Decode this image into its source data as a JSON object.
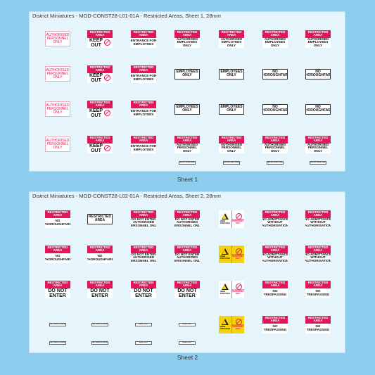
{
  "sheets": [
    {
      "title": "District Miniatures - MOD-CONST28-L01-01A - Restricted Areas, Sheet 1, 28mm",
      "caption": "Sheet 1",
      "rows": [
        [
          {
            "style": "red-text",
            "body": [
              "AUTHORISED",
              "PERSONNEL",
              "ONLY"
            ]
          },
          {
            "style": "keep-out",
            "header": [
              "RESTRICTED",
              "AREA"
            ],
            "body": [
              "KEEP",
              "OUT"
            ]
          },
          {
            "style": "restricted",
            "header": [
              "RESTRICTED",
              "AREA"
            ],
            "body": [
              "ENTRANCE FOR",
              "EMPLOYEES"
            ]
          },
          {
            "style": "restricted",
            "header": [
              "RESTRICTED",
              "AREA"
            ],
            "body": [
              "AUTHORISED",
              "EMPLOYEES",
              "ONLY"
            ]
          },
          {
            "style": "restricted",
            "header": [
              "RESTRICTED",
              "AREA"
            ],
            "body": [
              "AUTHORISED",
              "EMPLOYEES",
              "ONLY"
            ]
          },
          {
            "style": "restricted",
            "header": [
              "RESTRICTED",
              "AREA"
            ],
            "body": [
              "AUTHORISED",
              "EMPLOYEES",
              "ONLY"
            ]
          },
          {
            "style": "restricted",
            "header": [
              "RESTRICTED",
              "AREA"
            ],
            "body": [
              "AUTHORISED",
              "EMPLOYEES",
              "ONLY"
            ]
          }
        ],
        [
          {
            "style": "red-text",
            "body": [
              "AUTHORISED",
              "PERSONNEL",
              "ONLY"
            ]
          },
          {
            "style": "keep-out",
            "header": [
              "RESTRICTED",
              "AREA"
            ],
            "body": [
              "KEEP",
              "OUT"
            ]
          },
          {
            "style": "restricted",
            "header": [
              "RESTRICTED",
              "AREA"
            ],
            "body": [
              "ENTRANCE FOR",
              "EMPLOYEES"
            ]
          },
          {
            "style": "plain",
            "body": [
              "EMPLOYEES",
              "ONLY"
            ]
          },
          {
            "style": "plain",
            "body": [
              "EMPLOYEES",
              "ONLY"
            ]
          },
          {
            "style": "plain",
            "body": [
              "NO",
              "THOROUGHFARE"
            ]
          },
          {
            "style": "plain",
            "body": [
              "NO",
              "THOROUGHFARE"
            ]
          }
        ],
        [
          {
            "style": "red-text",
            "body": [
              "AUTHORISED",
              "PERSONNEL",
              "ONLY"
            ]
          },
          {
            "style": "keep-out",
            "header": [
              "RESTRICTED",
              "AREA"
            ],
            "body": [
              "KEEP",
              "OUT"
            ]
          },
          {
            "style": "restricted",
            "header": [
              "RESTRICTED",
              "AREA"
            ],
            "body": [
              "ENTRANCE FOR",
              "EMPLOYEES"
            ]
          },
          {
            "style": "plain",
            "body": [
              "EMPLOYEES",
              "ONLY"
            ]
          },
          {
            "style": "plain",
            "body": [
              "EMPLOYEES",
              "ONLY"
            ]
          },
          {
            "style": "plain",
            "body": [
              "NO",
              "THOROUGHFARE"
            ]
          },
          {
            "style": "plain",
            "body": [
              "NO",
              "THOROUGHFARE"
            ]
          }
        ],
        [
          {
            "style": "red-text",
            "body": [
              "AUTHORISED",
              "PERSONNEL",
              "ONLY"
            ]
          },
          {
            "style": "keep-out",
            "header": [
              "RESTRICTED",
              "AREA"
            ],
            "body": [
              "KEEP",
              "OUT"
            ]
          },
          {
            "style": "restricted",
            "header": [
              "RESTRICTED",
              "AREA"
            ],
            "body": [
              "ENTRANCE FOR",
              "EMPLOYEES"
            ]
          },
          {
            "style": "restricted",
            "header": [
              "RESTRICTED",
              "AREA"
            ],
            "body": [
              "AUTHORISED",
              "PERSONNEL",
              "ONLY"
            ]
          },
          {
            "style": "restricted",
            "header": [
              "RESTRICTED",
              "AREA"
            ],
            "body": [
              "AUTHORISED",
              "PERSONNEL",
              "ONLY"
            ]
          },
          {
            "style": "restricted",
            "header": [
              "RESTRICTED",
              "AREA"
            ],
            "body": [
              "AUTHORISED",
              "PERSONNEL",
              "ONLY"
            ]
          },
          {
            "style": "restricted",
            "header": [
              "RESTRICTED",
              "AREA"
            ],
            "body": [
              "AUTHORISED",
              "PERSONNEL",
              "ONLY"
            ]
          }
        ],
        [
          null,
          null,
          null,
          {
            "style": "small",
            "body": [
              "EMPLOYEES ONLY"
            ]
          },
          {
            "style": "small",
            "body": [
              "EMPLOYEES ONLY"
            ]
          },
          {
            "style": "small",
            "body": [
              "EMPLOYEES ONLY"
            ]
          },
          {
            "style": "small",
            "body": [
              "EMPLOYEES ONLY"
            ]
          }
        ]
      ]
    },
    {
      "title": "District Miniatures - MOD-CONST28-L02-01A - Restricted Areas, Sheet 2, 28mm",
      "caption": "Sheet 2",
      "rows": [
        [
          {
            "style": "restricted",
            "header": [
              "RESTRICTED",
              "AREA"
            ],
            "body": [
              "NO",
              "THOROUGHFARE"
            ]
          },
          {
            "style": "plain",
            "body": [
              "RESTRICTED",
              "AREA"
            ]
          },
          {
            "style": "restricted",
            "header": [
              "RESTRICTED",
              "AREA"
            ],
            "body": [
              "DO NOT ENTER",
              "AUTHORISED",
              "PERSONNEL ONLY"
            ]
          },
          {
            "style": "restricted",
            "header": [
              "RESTRICTED",
              "AREA"
            ],
            "body": [
              "DO NOT ENTER",
              "AUTHORISED",
              "PERSONNEL ONLY"
            ]
          },
          {
            "style": "hazard",
            "body": [
              "HIGH",
              "VOLTAGE"
            ],
            "note": [
              "AUTHORISED",
              "PERSONNEL",
              "ONLY"
            ]
          },
          {
            "style": "restricted",
            "header": [
              "RESTRICTED",
              "AREA"
            ],
            "body": [
              "NO ADMITTANCE",
              "WITHOUT",
              "AUTHORISATION"
            ]
          },
          {
            "style": "restricted",
            "header": [
              "RESTRICTED",
              "AREA"
            ],
            "body": [
              "NO ADMITTANCE",
              "WITHOUT",
              "AUTHORISATION"
            ]
          }
        ],
        [
          {
            "style": "restricted",
            "header": [
              "RESTRICTED",
              "AREA"
            ],
            "body": [
              "NO",
              "THOROUGHFARE"
            ]
          },
          {
            "style": "restricted",
            "header": [
              "RESTRICTED",
              "AREA"
            ],
            "body": [
              "NO",
              "THOROUGHFARE"
            ]
          },
          {
            "style": "restricted",
            "header": [
              "RESTRICTED",
              "AREA"
            ],
            "body": [
              "DO NOT ENTER",
              "AUTHORISED",
              "PERSONNEL ONLY"
            ]
          },
          {
            "style": "restricted",
            "header": [
              "RESTRICTED",
              "AREA"
            ],
            "body": [
              "DO NOT ENTER",
              "AUTHORISED",
              "PERSONNEL ONLY"
            ]
          },
          {
            "style": "hazard-yellow",
            "body": [
              "HIGH",
              "VOLTAGE"
            ],
            "note": [
              "AUTHORISED",
              "PERSONNEL",
              "ONLY"
            ]
          },
          {
            "style": "restricted",
            "header": [
              "RESTRICTED",
              "AREA"
            ],
            "body": [
              "NO ADMITTANCE",
              "WITHOUT",
              "AUTHORISATION"
            ]
          },
          {
            "style": "restricted",
            "header": [
              "RESTRICTED",
              "AREA"
            ],
            "body": [
              "NO ADMITTANCE",
              "WITHOUT",
              "AUTHORISATION"
            ]
          }
        ],
        [
          {
            "style": "big",
            "header": [
              "RESTRICTED",
              "AREA"
            ],
            "body": [
              "DO NOT",
              "ENTER"
            ]
          },
          {
            "style": "big",
            "header": [
              "RESTRICTED",
              "AREA"
            ],
            "body": [
              "DO NOT",
              "ENTER"
            ]
          },
          {
            "style": "big",
            "header": [
              "RESTRICTED",
              "AREA"
            ],
            "body": [
              "DO NOT",
              "ENTER"
            ]
          },
          {
            "style": "big",
            "header": [
              "RESTRICTED",
              "AREA"
            ],
            "body": [
              "DO NOT",
              "ENTER"
            ]
          },
          {
            "style": "hazard",
            "body": [
              "HIGH",
              "VOLTAGE"
            ],
            "note": [
              "AUTHORISED",
              "PERSONNEL",
              "ONLY"
            ]
          },
          {
            "style": "restricted",
            "header": [
              "RESTRICTED",
              "AREA"
            ],
            "body": [
              "NO",
              "TRESPASSING"
            ]
          },
          {
            "style": "restricted",
            "header": [
              "RESTRICTED",
              "AREA"
            ],
            "body": [
              "NO",
              "TRESPASSING"
            ]
          }
        ],
        [
          {
            "style": "small",
            "body": [
              "NO ADMITTANCE"
            ]
          },
          {
            "style": "small",
            "body": [
              "NO ADMITTANCE"
            ]
          },
          {
            "style": "small",
            "body": [
              "KEEP OUT"
            ]
          },
          {
            "style": "small",
            "body": [
              "KEEP OUT"
            ]
          },
          {
            "style": "hazard-yellow",
            "body": [
              "HIGH",
              "VOLTAGE"
            ],
            "note": [
              "AUTHORISED",
              "PERSONNEL",
              "ONLY"
            ]
          },
          {
            "style": "restricted",
            "header": [
              "RESTRICTED",
              "AREA"
            ],
            "body": [
              "NO",
              "TRESPASSING"
            ]
          },
          {
            "style": "restricted",
            "header": [
              "RESTRICTED",
              "AREA"
            ],
            "body": [
              "NO",
              "TRESPASSING"
            ]
          }
        ],
        [
          {
            "style": "small",
            "body": [
              "NO ADMITTANCE"
            ]
          },
          {
            "style": "small",
            "body": [
              "NO ADMITTANCE"
            ]
          },
          {
            "style": "small",
            "body": [
              "KEEP OUT"
            ]
          },
          {
            "style": "small",
            "body": [
              "KEEP OUT"
            ]
          },
          null,
          null,
          null
        ]
      ]
    }
  ]
}
